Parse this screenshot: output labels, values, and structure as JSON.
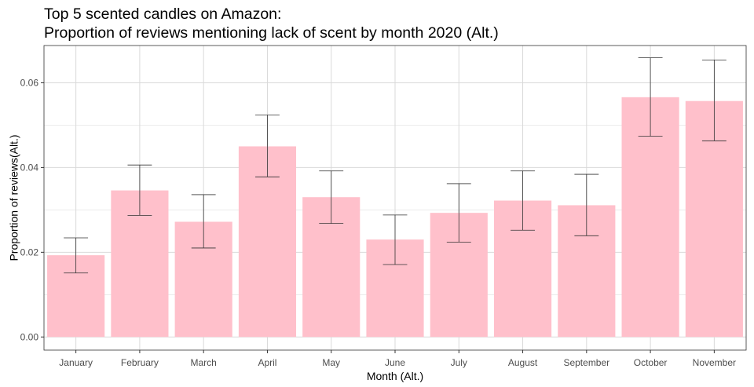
{
  "chart_data": {
    "type": "bar",
    "title_line1": "Top 5 scented candles on Amazon:",
    "title_line2": "Proportion of reviews mentioning lack of scent by month 2020 (Alt.)",
    "xlabel": "Month (Alt.)",
    "ylabel": "Proportion of reviews(Alt.)",
    "categories": [
      "January",
      "February",
      "March",
      "April",
      "May",
      "June",
      "July",
      "August",
      "September",
      "October",
      "November"
    ],
    "values": [
      0.0193,
      0.0346,
      0.0272,
      0.045,
      0.033,
      0.023,
      0.0293,
      0.0322,
      0.0311,
      0.0566,
      0.0557
    ],
    "error_low": [
      0.0151,
      0.0287,
      0.021,
      0.0378,
      0.0268,
      0.0171,
      0.0224,
      0.0252,
      0.0239,
      0.0474,
      0.0463
    ],
    "error_high": [
      0.0234,
      0.0406,
      0.0336,
      0.0524,
      0.0392,
      0.0288,
      0.0362,
      0.0392,
      0.0384,
      0.0659,
      0.0654
    ],
    "yticks": [
      "0.00",
      "0.02",
      "0.04",
      "0.06"
    ],
    "ytick_values": [
      0,
      0.02,
      0.04,
      0.06
    ],
    "ylim": [
      -0.0031,
      0.0688
    ],
    "grid": true,
    "bar_color": "#ffc0cb",
    "error_color": "#333333",
    "grid_color": "#d9d9d9",
    "panel_border_color": "#333333"
  }
}
